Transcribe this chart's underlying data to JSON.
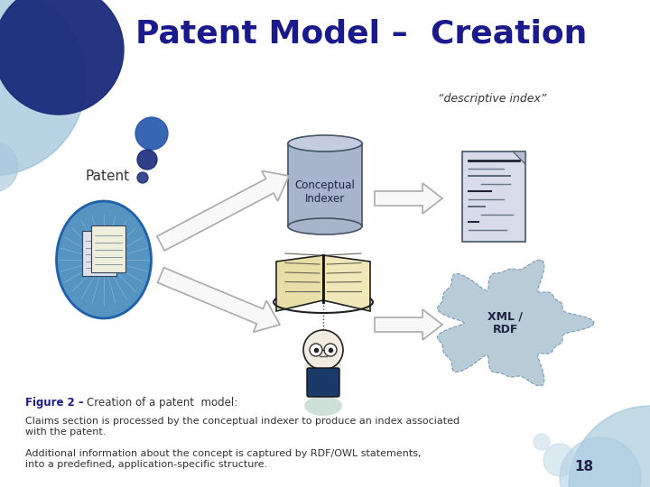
{
  "title": "Patent Model –  Creation",
  "title_color": "#1a1a8c",
  "title_fontsize": 26,
  "bg_color": "#ffffff",
  "slide_number": "18",
  "descriptive_index_label": "“descriptive index”",
  "patent_label": "Patent",
  "conceptual_indexer_label": "Conceptual\nIndexer",
  "xml_rdf_label": "XML /\nRDF",
  "figure_bold": "Figure 2 – ",
  "figure_rest": "Creation of a patent  model:",
  "caption1": "Claims section is processed by the conceptual indexer to produce an index associated\nwith the patent.",
  "caption2": "Additional information about the concept is captured by RDF/OWL statements,\ninto a predefined, application-specific structure.",
  "cylinder_color": "#a8b4cc",
  "cylinder_top_color": "#c4cce0",
  "cylinder_edge": "#445566",
  "cloud_color": "#b8ccd8",
  "cloud_edge": "#7799bb"
}
